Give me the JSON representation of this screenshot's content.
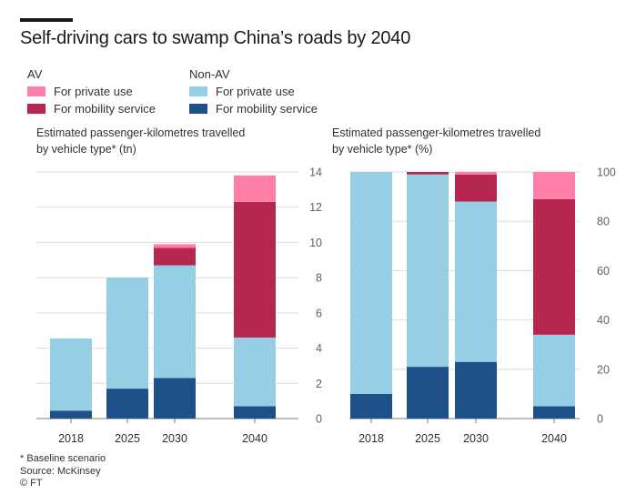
{
  "title": "Self-driving cars to swamp China’s roads by 2040",
  "legend": {
    "groups": [
      {
        "heading": "AV",
        "items": [
          {
            "label": "For private use",
            "color": "#ff7fa8"
          },
          {
            "label": "For mobility service",
            "color": "#b5274f"
          }
        ]
      },
      {
        "heading": "Non-AV",
        "items": [
          {
            "label": "For private use",
            "color": "#96cfe5"
          },
          {
            "label": "For mobility service",
            "color": "#1e5189"
          }
        ]
      }
    ]
  },
  "chart_data": [
    {
      "type": "bar",
      "stacked": true,
      "title": "Estimated passenger-kilometres travelled\nby vehicle type* (tn)",
      "categories": [
        "2018",
        "2025",
        "2030",
        "2040"
      ],
      "series": [
        {
          "name": "Non-AV For mobility service",
          "color": "#1e5189",
          "values": [
            0.45,
            1.7,
            2.3,
            0.7
          ]
        },
        {
          "name": "Non-AV For private use",
          "color": "#96cfe5",
          "values": [
            4.1,
            6.3,
            6.4,
            3.9
          ]
        },
        {
          "name": "AV For mobility service",
          "color": "#b5274f",
          "values": [
            0,
            0,
            1.0,
            7.7
          ]
        },
        {
          "name": "AV For private use",
          "color": "#ff7fa8",
          "values": [
            0,
            0,
            0.2,
            1.5
          ]
        }
      ],
      "ylim": [
        0,
        14
      ],
      "yticks": [
        "0",
        "2",
        "4",
        "6",
        "8",
        "10",
        "12",
        "14"
      ],
      "yaxis_position": "right",
      "grid": true
    },
    {
      "type": "bar",
      "stacked": true,
      "title": "Estimated passenger-kilometres travelled\nby vehicle type* (%)",
      "categories": [
        "2018",
        "2025",
        "2030",
        "2040"
      ],
      "series": [
        {
          "name": "Non-AV For mobility service",
          "color": "#1e5189",
          "values": [
            10,
            21,
            23,
            5
          ]
        },
        {
          "name": "Non-AV For private use",
          "color": "#96cfe5",
          "values": [
            90,
            78,
            65,
            29
          ]
        },
        {
          "name": "AV For mobility service",
          "color": "#b5274f",
          "values": [
            0,
            1,
            11,
            55
          ]
        },
        {
          "name": "AV For private use",
          "color": "#ff7fa8",
          "values": [
            0,
            0,
            1,
            11
          ]
        }
      ],
      "ylim": [
        0,
        100
      ],
      "yticks": [
        "0",
        "20",
        "40",
        "60",
        "80",
        "100"
      ],
      "yaxis_position": "right",
      "grid": true
    }
  ],
  "footer": {
    "note": "* Baseline scenario",
    "source": "Source: McKinsey",
    "credit": "© FT"
  }
}
